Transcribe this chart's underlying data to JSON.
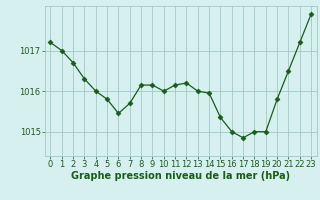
{
  "x": [
    0,
    1,
    2,
    3,
    4,
    5,
    6,
    7,
    8,
    9,
    10,
    11,
    12,
    13,
    14,
    15,
    16,
    17,
    18,
    19,
    20,
    21,
    22,
    23
  ],
  "y": [
    1017.2,
    1017.0,
    1016.7,
    1016.3,
    1016.0,
    1015.8,
    1015.45,
    1015.7,
    1016.15,
    1016.15,
    1016.0,
    1016.15,
    1016.2,
    1016.0,
    1015.95,
    1015.35,
    1015.0,
    1014.85,
    1015.0,
    1015.0,
    1015.8,
    1016.5,
    1017.2,
    1017.9
  ],
  "line_color": "#1a5c1a",
  "marker": "D",
  "marker_size": 2.5,
  "bg_color": "#d6f0f0",
  "grid_color": "#a0c8c8",
  "xlabel": "Graphe pression niveau de la mer (hPa)",
  "xlabel_color": "#1a5c1a",
  "xlabel_fontsize": 7,
  "tick_color": "#1a5c1a",
  "tick_fontsize": 6,
  "yticks": [
    1015,
    1016,
    1017
  ],
  "ylim": [
    1014.4,
    1018.1
  ],
  "xlim": [
    -0.5,
    23.5
  ]
}
